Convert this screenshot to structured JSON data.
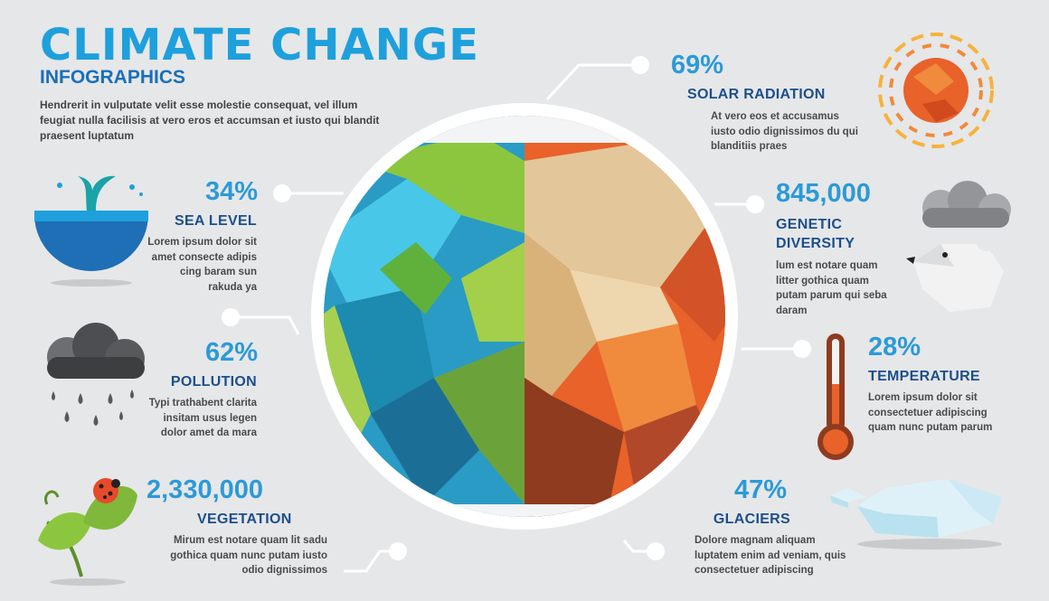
{
  "header": {
    "title": "CLIMATE CHANGE",
    "subtitle": "INFOGRAPHICS",
    "intro": "Hendrerit in vulputate velit esse molestie consequat, vel illum feugiat nulla facilisis at vero eros et accumsan et iusto qui blandit praesent luptatum"
  },
  "items": {
    "sea_level": {
      "value": "34%",
      "label": "SEA LEVEL",
      "desc": "Lorem ipsum dolor sit amet consecte adipis cing baram sun rakuda ya",
      "icon": "whale-tail-ocean-icon"
    },
    "pollution": {
      "value": "62%",
      "label": "POLLUTION",
      "desc": "Typi trathabent clarita insitam usus legen dolor amet da mara",
      "icon": "rain-cloud-icon"
    },
    "vegetation": {
      "value": "2,330,000",
      "label": "VEGETATION",
      "desc": "Mirum est notare quam lit sadu gothica quam nunc putam iusto odio dignissimos",
      "icon": "leaf-ladybug-icon"
    },
    "solar_radiation": {
      "value": "69%",
      "label": "SOLAR RADIATION",
      "desc": "At vero eos et accusamus iusto odio dignissimos du qui blanditiis praes",
      "icon": "sun-icon"
    },
    "genetic_diversity": {
      "value": "845,000",
      "label": "GENETIC DIVERSITY",
      "label_line1": "GENETIC",
      "label_line2": "DIVERSITY",
      "desc": "lum est notare quam litter gothica quam putam parum qui seba  daram",
      "icon": "polar-bear-icon"
    },
    "temperature": {
      "value": "28%",
      "label": "TEMPERATURE",
      "desc": "Lorem ipsum dolor sit consectetuer adipiscing quam nunc putam parum",
      "icon": "thermometer-icon"
    },
    "glaciers": {
      "value": "47%",
      "label": "GLACIERS",
      "desc": "Dolore magnam aliquam luptatem enim ad veniam, quis consectetuer adipiscing",
      "icon": "ice-floe-icon"
    }
  },
  "colors": {
    "title_blue": "#1ea0dc",
    "label_navy": "#1c4f8c",
    "background": "#e6e7e8",
    "earth_healthy_green": "#7fbf3f",
    "earth_healthy_blue": "#2a9bc4",
    "earth_damaged_orange": "#e8622a",
    "earth_damaged_tan": "#e3c79a"
  }
}
